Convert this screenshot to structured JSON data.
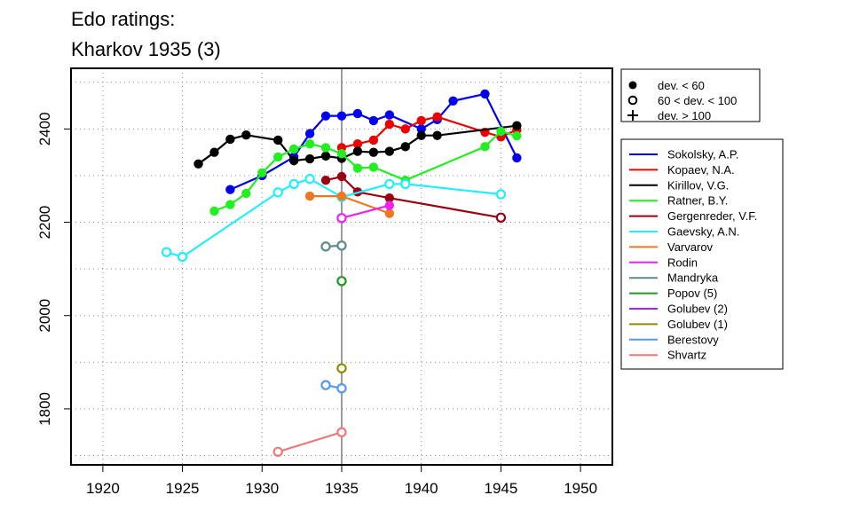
{
  "chart_data": {
    "type": "line",
    "title": "Edo ratings:",
    "subtitle": "Kharkov 1935 (3)",
    "xlim": [
      1918,
      1952
    ],
    "ylim": [
      1680,
      2530
    ],
    "x_ticks": [
      1920,
      1925,
      1930,
      1935,
      1940,
      1945,
      1950
    ],
    "y_ticks": [
      1800,
      2000,
      2200,
      2400
    ],
    "grid": true,
    "reference_year": 1935,
    "marker_legend": [
      {
        "marker": "filled-circle",
        "label": "dev. < 60"
      },
      {
        "marker": "open-circle",
        "label": "60 < dev. < 100"
      },
      {
        "marker": "plus",
        "label": "dev. > 100"
      }
    ],
    "legend_placement": "right",
    "series": [
      {
        "name": "Sokolsky, A.P.",
        "color": "#0000ee",
        "points": [
          [
            1928,
            2270,
            "f"
          ],
          [
            1930,
            2300,
            "f"
          ],
          [
            1932,
            2340,
            "f"
          ],
          [
            1933,
            2390,
            "f"
          ],
          [
            1934,
            2428,
            "f"
          ],
          [
            1935,
            2428,
            "f"
          ],
          [
            1936,
            2433,
            "f"
          ],
          [
            1937,
            2418,
            "f"
          ],
          [
            1938,
            2430,
            "f"
          ],
          [
            1940,
            2400,
            "f"
          ],
          [
            1941,
            2420,
            "f"
          ],
          [
            1942,
            2460,
            "f"
          ],
          [
            1944,
            2475,
            "f"
          ],
          [
            1946,
            2338,
            "f"
          ]
        ]
      },
      {
        "name": "Kopaev, N.A.",
        "color": "#ee0000",
        "points": [
          [
            1935,
            2360,
            "f"
          ],
          [
            1936,
            2368,
            "f"
          ],
          [
            1937,
            2376,
            "f"
          ],
          [
            1938,
            2410,
            "f"
          ],
          [
            1939,
            2400,
            "f"
          ],
          [
            1940,
            2418,
            "f"
          ],
          [
            1941,
            2426,
            "f"
          ],
          [
            1944,
            2393,
            "f"
          ],
          [
            1945,
            2383,
            "f"
          ],
          [
            1946,
            2398,
            "f"
          ]
        ]
      },
      {
        "name": "Kirillov, V.G.",
        "color": "#000000",
        "points": [
          [
            1926,
            2325,
            "f"
          ],
          [
            1927,
            2350,
            "f"
          ],
          [
            1928,
            2378,
            "f"
          ],
          [
            1929,
            2387,
            "f"
          ],
          [
            1931,
            2376,
            "f"
          ],
          [
            1932,
            2332,
            "f"
          ],
          [
            1933,
            2336,
            "f"
          ],
          [
            1934,
            2342,
            "f"
          ],
          [
            1935,
            2337,
            "f"
          ],
          [
            1936,
            2352,
            "f"
          ],
          [
            1937,
            2350,
            "f"
          ],
          [
            1938,
            2352,
            "f"
          ],
          [
            1939,
            2362,
            "f"
          ],
          [
            1940,
            2386,
            "f"
          ],
          [
            1941,
            2386,
            "f"
          ],
          [
            1946,
            2407,
            "f"
          ]
        ]
      },
      {
        "name": "Ratner, B.Y.",
        "color": "#22ee22",
        "points": [
          [
            1927,
            2224,
            "f"
          ],
          [
            1928,
            2238,
            "f"
          ],
          [
            1929,
            2262,
            "f"
          ],
          [
            1930,
            2306,
            "f"
          ],
          [
            1931,
            2340,
            "f"
          ],
          [
            1932,
            2357,
            "f"
          ],
          [
            1933,
            2368,
            "f"
          ],
          [
            1934,
            2360,
            "f"
          ],
          [
            1935,
            2347,
            "f"
          ],
          [
            1936,
            2316,
            "f"
          ],
          [
            1937,
            2318,
            "f"
          ],
          [
            1939,
            2290,
            "f"
          ],
          [
            1944,
            2362,
            "f"
          ],
          [
            1945,
            2395,
            "f"
          ],
          [
            1946,
            2385,
            "f"
          ]
        ]
      },
      {
        "name": "Gergenreder, V.F.",
        "color": "#990011",
        "points": [
          [
            1934,
            2290,
            "f"
          ],
          [
            1935,
            2298,
            "f"
          ],
          [
            1936,
            2265,
            "f"
          ],
          [
            1938,
            2252,
            "f"
          ],
          [
            1945,
            2210,
            "o"
          ]
        ]
      },
      {
        "name": "Gaevsky, A.N.",
        "color": "#22eeff",
        "points": [
          [
            1924,
            2136,
            "o"
          ],
          [
            1925,
            2126,
            "o"
          ],
          [
            1931,
            2264,
            "o"
          ],
          [
            1932,
            2282,
            "o"
          ],
          [
            1933,
            2293,
            "o"
          ],
          [
            1935,
            2254,
            "o"
          ],
          [
            1938,
            2282,
            "o"
          ],
          [
            1939,
            2282,
            "o"
          ],
          [
            1945,
            2260,
            "o"
          ]
        ]
      },
      {
        "name": "Varvarov",
        "color": "#ee7722",
        "points": [
          [
            1933,
            2256,
            "f"
          ],
          [
            1935,
            2256,
            "f"
          ],
          [
            1938,
            2219,
            "f"
          ]
        ]
      },
      {
        "name": "Rodin",
        "color": "#ee22ee",
        "points": [
          [
            1935,
            2209,
            "o"
          ],
          [
            1938,
            2236,
            "f"
          ]
        ]
      },
      {
        "name": "Mandryka",
        "color": "#5f8a8b",
        "points": [
          [
            1934,
            2148,
            "o"
          ],
          [
            1935,
            2150,
            "o"
          ]
        ]
      },
      {
        "name": "Popov (5)",
        "color": "#229922",
        "points": [
          [
            1935,
            2074,
            "o"
          ]
        ]
      },
      {
        "name": "Golubev (2)",
        "color": "#aa22ee",
        "points": []
      },
      {
        "name": "Golubev (1)",
        "color": "#998800",
        "points": [
          [
            1935,
            1887,
            "o"
          ]
        ]
      },
      {
        "name": "Berestovy",
        "color": "#5599ee",
        "points": [
          [
            1934,
            1851,
            "o"
          ],
          [
            1935,
            1844,
            "o"
          ]
        ]
      },
      {
        "name": "Shvartz",
        "color": "#f07878",
        "points": [
          [
            1931,
            1708,
            "o"
          ],
          [
            1935,
            1750,
            "o"
          ]
        ]
      }
    ]
  }
}
